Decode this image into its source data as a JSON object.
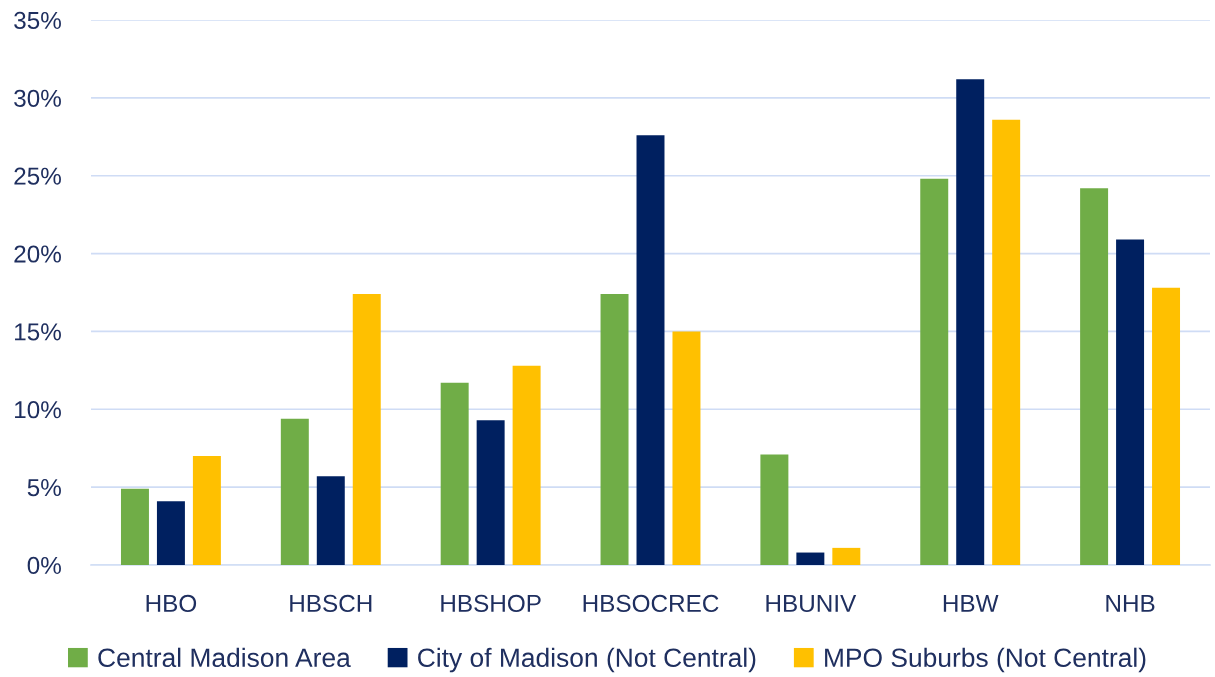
{
  "chart_data": {
    "type": "bar",
    "categories": [
      "HBO",
      "HBSCH",
      "HBSHOP",
      "HBSOCREC",
      "HBUNIV",
      "HBW",
      "NHB"
    ],
    "series": [
      {
        "name": "Central Madison Area",
        "color": "#70ad47",
        "values": [
          4.9,
          9.4,
          11.7,
          17.4,
          7.1,
          24.8,
          24.2
        ]
      },
      {
        "name": "City of Madison (Not Central)",
        "color": "#002060",
        "values": [
          4.1,
          5.7,
          9.3,
          27.6,
          0.8,
          31.2,
          20.9
        ]
      },
      {
        "name": "MPO Suburbs (Not Central)",
        "color": "#ffc000",
        "values": [
          7.0,
          17.4,
          12.8,
          15.0,
          1.1,
          28.6,
          17.8
        ]
      }
    ],
    "ylim": [
      0,
      35
    ],
    "yticks": [
      {
        "value": 0,
        "label": "0%"
      },
      {
        "value": 5,
        "label": "5%"
      },
      {
        "value": 10,
        "label": "10%"
      },
      {
        "value": 15,
        "label": "15%"
      },
      {
        "value": 20,
        "label": "20%"
      },
      {
        "value": 25,
        "label": "25%"
      },
      {
        "value": 30,
        "label": "30%"
      },
      {
        "value": 35,
        "label": "35%"
      }
    ],
    "grid": "y",
    "legend": "bottom"
  }
}
